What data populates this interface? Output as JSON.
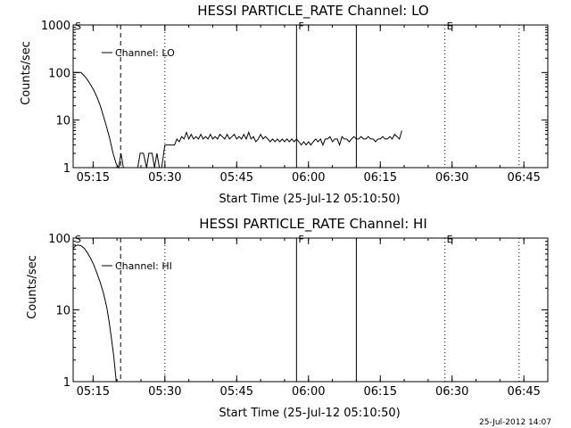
{
  "footer": {
    "timestamp": "25-Jul-2012 14:07"
  },
  "chart_data": [
    {
      "type": "line",
      "title": "HESSI PARTICLE_RATE Channel: LO",
      "xlabel": "Start Time (25-Jul-12 05:10:50)",
      "ylabel": "Counts/sec",
      "yscale": "log",
      "ylim": [
        1,
        1000
      ],
      "xlim": [
        "05:10:50",
        "06:50:00"
      ],
      "x_ticks": [
        "05:15",
        "05:30",
        "05:45",
        "06:00",
        "06:15",
        "06:30",
        "06:45"
      ],
      "y_ticks": [
        "1",
        "10",
        "100",
        "1000"
      ],
      "legend": {
        "label": "Channel: LO",
        "placement": "top-left"
      },
      "markers": [
        {
          "label": "S",
          "time": "05:10:50",
          "style": "none"
        },
        {
          "label": "",
          "time": "05:20:45",
          "style": "dashed"
        },
        {
          "label": "",
          "time": "05:30:00",
          "style": "dotted"
        },
        {
          "label": "F",
          "time": "05:57:30",
          "style": "solid"
        },
        {
          "label": "",
          "time": "06:10:00",
          "style": "solid"
        },
        {
          "label": "E",
          "time": "06:28:30",
          "style": "dotted"
        },
        {
          "label": "",
          "time": "06:44:00",
          "style": "dotted"
        }
      ],
      "series": [
        {
          "name": "Channel: LO",
          "points": [
            [
              "05:10:50",
              100
            ],
            [
              "05:12:30",
              100
            ],
            [
              "05:13:10",
              85
            ],
            [
              "05:13:50",
              70
            ],
            [
              "05:14:30",
              55
            ],
            [
              "05:15:10",
              42
            ],
            [
              "05:15:50",
              30
            ],
            [
              "05:16:30",
              20
            ],
            [
              "05:17:10",
              12
            ],
            [
              "05:17:50",
              7
            ],
            [
              "05:18:30",
              4
            ],
            [
              "05:19:10",
              2
            ],
            [
              "05:19:50",
              1.2
            ],
            [
              "05:20:20",
              1
            ],
            [
              "05:20:50",
              2
            ],
            [
              "05:21:20",
              1
            ],
            [
              "05:22:00",
              1
            ],
            [
              "05:22:30",
              1
            ],
            [
              "05:23:00",
              1
            ],
            [
              "05:23:40",
              1
            ],
            [
              "05:24:20",
              1
            ],
            [
              "05:24:50",
              2
            ],
            [
              "05:25:30",
              2
            ],
            [
              "05:26:10",
              1
            ],
            [
              "05:26:40",
              2
            ],
            [
              "05:27:20",
              2
            ],
            [
              "05:27:50",
              1
            ],
            [
              "05:28:20",
              2
            ],
            [
              "05:28:50",
              1
            ],
            [
              "05:29:20",
              1
            ],
            [
              "05:30:00",
              3
            ],
            [
              "05:32:00",
              3
            ],
            [
              "05:32:30",
              4
            ],
            [
              "05:33:00",
              3.5
            ],
            [
              "05:33:30",
              4.5
            ],
            [
              "05:34:00",
              4
            ],
            [
              "05:34:30",
              5.5
            ],
            [
              "05:35:00",
              4
            ],
            [
              "05:35:30",
              5
            ],
            [
              "05:36:00",
              4
            ],
            [
              "05:36:30",
              4.5
            ],
            [
              "05:37:00",
              4
            ],
            [
              "05:37:30",
              5
            ],
            [
              "05:38:00",
              4
            ],
            [
              "05:38:30",
              4.5
            ],
            [
              "05:39:00",
              4
            ],
            [
              "05:39:30",
              5
            ],
            [
              "05:40:00",
              4
            ],
            [
              "05:40:30",
              4.5
            ],
            [
              "05:41:00",
              4
            ],
            [
              "05:41:30",
              5
            ],
            [
              "05:42:00",
              4.5
            ],
            [
              "05:42:30",
              4
            ],
            [
              "05:43:00",
              5
            ],
            [
              "05:43:30",
              4
            ],
            [
              "05:44:00",
              4.5
            ],
            [
              "05:44:30",
              5
            ],
            [
              "05:45:00",
              4
            ],
            [
              "05:45:30",
              4.5
            ],
            [
              "05:46:00",
              4
            ],
            [
              "05:46:30",
              5
            ],
            [
              "05:47:00",
              4
            ],
            [
              "05:47:30",
              5.5
            ],
            [
              "05:48:00",
              4
            ],
            [
              "05:48:30",
              4.5
            ],
            [
              "05:49:00",
              3.5
            ],
            [
              "05:49:30",
              4
            ],
            [
              "05:50:00",
              5
            ],
            [
              "05:50:30",
              4
            ],
            [
              "05:51:00",
              4.5
            ],
            [
              "05:51:30",
              4
            ],
            [
              "05:52:00",
              3.5
            ],
            [
              "05:52:30",
              4
            ],
            [
              "05:53:00",
              3.5
            ],
            [
              "05:53:30",
              4
            ],
            [
              "05:54:00",
              3.5
            ],
            [
              "05:54:30",
              4
            ],
            [
              "05:55:00",
              3.5
            ],
            [
              "05:55:30",
              4
            ],
            [
              "05:56:00",
              3.5
            ],
            [
              "05:56:30",
              4
            ],
            [
              "05:57:00",
              3.5
            ],
            [
              "05:57:30",
              4
            ],
            [
              "05:58:00",
              3.5
            ],
            [
              "05:58:30",
              3
            ],
            [
              "05:59:00",
              3.5
            ],
            [
              "05:59:30",
              3
            ],
            [
              "06:00:00",
              3.5
            ],
            [
              "06:00:30",
              3
            ],
            [
              "06:01:00",
              3.5
            ],
            [
              "06:01:30",
              4
            ],
            [
              "06:02:00",
              3.5
            ],
            [
              "06:02:30",
              4
            ],
            [
              "06:03:00",
              3
            ],
            [
              "06:03:30",
              4
            ],
            [
              "06:04:00",
              4
            ],
            [
              "06:04:30",
              4.5
            ],
            [
              "06:05:00",
              3.5
            ],
            [
              "06:05:30",
              4
            ],
            [
              "06:06:00",
              4
            ],
            [
              "06:06:30",
              3
            ],
            [
              "06:07:00",
              4.5
            ],
            [
              "06:07:30",
              4
            ],
            [
              "06:08:00",
              4
            ],
            [
              "06:08:30",
              3.5
            ],
            [
              "06:09:00",
              4
            ],
            [
              "06:09:30",
              4.5
            ],
            [
              "06:10:00",
              4
            ],
            [
              "06:10:30",
              4
            ],
            [
              "06:11:00",
              4.5
            ],
            [
              "06:11:30",
              4
            ],
            [
              "06:12:00",
              4
            ],
            [
              "06:12:30",
              4.5
            ],
            [
              "06:13:00",
              4
            ],
            [
              "06:13:30",
              4
            ],
            [
              "06:14:00",
              3.5
            ],
            [
              "06:14:30",
              4
            ],
            [
              "06:15:00",
              4
            ],
            [
              "06:15:30",
              4.5
            ],
            [
              "06:16:00",
              4
            ],
            [
              "06:16:30",
              4
            ],
            [
              "06:17:00",
              4.5
            ],
            [
              "06:17:30",
              4
            ],
            [
              "06:18:00",
              5
            ],
            [
              "06:18:30",
              4.5
            ],
            [
              "06:19:00",
              4
            ],
            [
              "06:19:30",
              6
            ]
          ]
        }
      ]
    },
    {
      "type": "line",
      "title": "HESSI PARTICLE_RATE Channel: HI",
      "xlabel": "Start Time (25-Jul-12 05:10:50)",
      "ylabel": "Counts/sec",
      "yscale": "log",
      "ylim": [
        1,
        100
      ],
      "xlim": [
        "05:10:50",
        "06:50:00"
      ],
      "x_ticks": [
        "05:15",
        "05:30",
        "05:45",
        "06:00",
        "06:15",
        "06:30",
        "06:45"
      ],
      "y_ticks": [
        "1",
        "10",
        "100"
      ],
      "legend": {
        "label": "Channel: HI",
        "placement": "top-left"
      },
      "markers": [
        {
          "label": "S",
          "time": "05:10:50",
          "style": "none"
        },
        {
          "label": "",
          "time": "05:20:45",
          "style": "dashed"
        },
        {
          "label": "",
          "time": "05:30:00",
          "style": "dotted"
        },
        {
          "label": "F",
          "time": "05:57:30",
          "style": "solid"
        },
        {
          "label": "",
          "time": "06:10:00",
          "style": "solid"
        },
        {
          "label": "E",
          "time": "06:28:30",
          "style": "dotted"
        },
        {
          "label": "",
          "time": "06:44:00",
          "style": "dotted"
        }
      ],
      "series": [
        {
          "name": "Channel: HI",
          "points": [
            [
              "05:10:50",
              72
            ],
            [
              "05:11:20",
              78
            ],
            [
              "05:11:50",
              80
            ],
            [
              "05:12:30",
              78
            ],
            [
              "05:13:10",
              72
            ],
            [
              "05:13:50",
              62
            ],
            [
              "05:14:30",
              52
            ],
            [
              "05:15:10",
              42
            ],
            [
              "05:15:50",
              32
            ],
            [
              "05:16:30",
              24
            ],
            [
              "05:17:10",
              17
            ],
            [
              "05:17:50",
              11
            ],
            [
              "05:18:20",
              7
            ],
            [
              "05:18:50",
              4
            ],
            [
              "05:19:20",
              2.2
            ],
            [
              "05:19:50",
              1
            ]
          ]
        }
      ]
    }
  ]
}
